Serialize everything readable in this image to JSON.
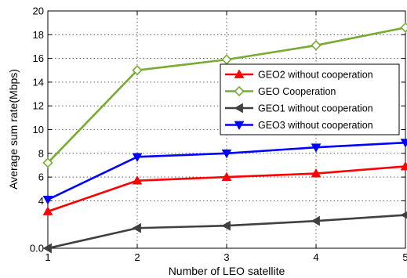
{
  "chart_data": {
    "type": "line",
    "title": "",
    "xlabel": "Number of LEO satellite",
    "ylabel": "Average sum rate(Mbps)",
    "xlim": [
      1,
      5
    ],
    "ylim": [
      0,
      20
    ],
    "x": [
      1,
      2,
      3,
      4,
      5
    ],
    "x_ticks": [
      "1",
      "2",
      "3",
      "4",
      "5"
    ],
    "y_ticks": [
      {
        "value": 0,
        "label": "0.0"
      },
      {
        "value": 4,
        "label": "4"
      },
      {
        "value": 6,
        "label": "6"
      },
      {
        "value": 8,
        "label": "8"
      },
      {
        "value": 10,
        "label": "10"
      },
      {
        "value": 12,
        "label": "12"
      },
      {
        "value": 14,
        "label": "14"
      },
      {
        "value": 16,
        "label": "16"
      },
      {
        "value": 18,
        "label": "18"
      },
      {
        "value": 20,
        "label": "20"
      }
    ],
    "grid": true,
    "legend_position": "right",
    "series": [
      {
        "name": "GEO2 without cooperation",
        "color": "#ff0000",
        "marker": "triangle-up",
        "values": [
          3.1,
          5.7,
          6.0,
          6.3,
          6.9
        ]
      },
      {
        "name": "GEO Cooperation",
        "color": "#77ac30",
        "marker": "diamond",
        "values": [
          7.2,
          15.0,
          15.9,
          17.1,
          18.6
        ]
      },
      {
        "name": "GEO1 without cooperation",
        "color": "#404040",
        "marker": "triangle-left",
        "values": [
          0.0,
          1.7,
          1.9,
          2.3,
          2.8
        ]
      },
      {
        "name": "GEO3 without cooperation",
        "color": "#0000ff",
        "marker": "triangle-down",
        "values": [
          4.1,
          7.7,
          8.0,
          8.5,
          8.9
        ]
      }
    ]
  }
}
